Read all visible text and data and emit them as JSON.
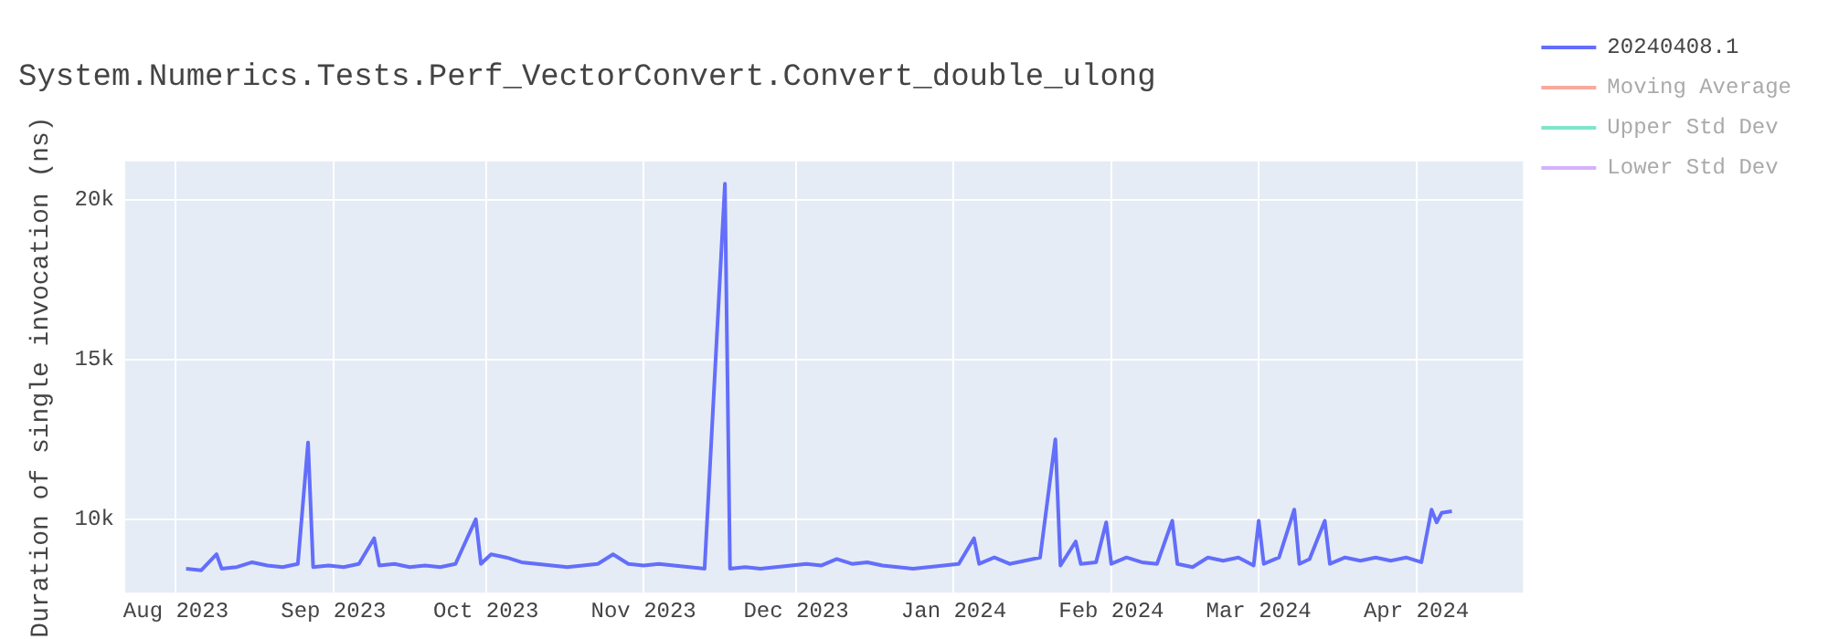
{
  "chart_data": {
    "type": "line",
    "title": "System.Numerics.Tests.Perf_VectorConvert.Convert_double_ulong",
    "ylabel": "Duration of single invocation (ns)",
    "x": [
      "2023-08-03",
      "2023-08-06",
      "2023-08-09",
      "2023-08-10",
      "2023-08-13",
      "2023-08-16",
      "2023-08-19",
      "2023-08-22",
      "2023-08-25",
      "2023-08-27",
      "2023-08-28",
      "2023-08-31",
      "2023-09-03",
      "2023-09-06",
      "2023-09-09",
      "2023-09-10",
      "2023-09-13",
      "2023-09-16",
      "2023-09-19",
      "2023-09-22",
      "2023-09-25",
      "2023-09-29",
      "2023-09-30",
      "2023-10-02",
      "2023-10-05",
      "2023-10-08",
      "2023-10-11",
      "2023-10-14",
      "2023-10-17",
      "2023-10-20",
      "2023-10-23",
      "2023-10-26",
      "2023-10-29",
      "2023-11-01",
      "2023-11-04",
      "2023-11-07",
      "2023-11-10",
      "2023-11-13",
      "2023-11-17",
      "2023-11-18",
      "2023-11-21",
      "2023-11-24",
      "2023-11-27",
      "2023-11-30",
      "2023-12-03",
      "2023-12-06",
      "2023-12-09",
      "2023-12-12",
      "2023-12-15",
      "2023-12-18",
      "2023-12-21",
      "2023-12-24",
      "2023-12-27",
      "2023-12-30",
      "2024-01-02",
      "2024-01-05",
      "2024-01-06",
      "2024-01-09",
      "2024-01-12",
      "2024-01-15",
      "2024-01-18",
      "2024-01-21",
      "2024-01-22",
      "2024-01-25",
      "2024-01-26",
      "2024-01-29",
      "2024-01-31",
      "2024-02-01",
      "2024-02-04",
      "2024-02-07",
      "2024-02-10",
      "2024-02-13",
      "2024-02-14",
      "2024-02-17",
      "2024-02-20",
      "2024-02-23",
      "2024-02-26",
      "2024-02-29",
      "2024-03-01",
      "2024-03-02",
      "2024-03-05",
      "2024-03-08",
      "2024-03-09",
      "2024-03-11",
      "2024-03-14",
      "2024-03-15",
      "2024-03-18",
      "2024-03-21",
      "2024-03-24",
      "2024-03-27",
      "2024-03-30",
      "2024-04-02",
      "2024-04-04",
      "2024-04-05",
      "2024-04-06",
      "2024-04-08"
    ],
    "series": [
      {
        "name": "20240408.1",
        "color": "#636efa",
        "values": [
          8450,
          8400,
          8900,
          8450,
          8500,
          8650,
          8550,
          8500,
          8600,
          12400,
          8500,
          8550,
          8500,
          8600,
          9400,
          8550,
          8600,
          8500,
          8550,
          8500,
          8600,
          10000,
          8600,
          8900,
          8800,
          8650,
          8600,
          8550,
          8500,
          8550,
          8600,
          8900,
          8600,
          8550,
          8600,
          8550,
          8500,
          8450,
          20500,
          8450,
          8500,
          8450,
          8500,
          8550,
          8600,
          8550,
          8750,
          8600,
          8650,
          8550,
          8500,
          8450,
          8500,
          8550,
          8600,
          9400,
          8600,
          8800,
          8600,
          8700,
          8800,
          12500,
          8550,
          9300,
          8600,
          8650,
          9900,
          8600,
          8800,
          8650,
          8600,
          9950,
          8600,
          8500,
          8800,
          8700,
          8800,
          8550,
          9950,
          8600,
          8800,
          10300,
          8600,
          8750,
          9950,
          8600,
          8800,
          8700,
          8800,
          8700,
          8800,
          8650,
          10300,
          9900,
          10200,
          10250
        ]
      },
      {
        "name": "Moving Average",
        "color": "#ef553b",
        "values": [
          null,
          null,
          null,
          null,
          null,
          null,
          null,
          null,
          null,
          null,
          null,
          null,
          null,
          null,
          null,
          null,
          null,
          null,
          null,
          null,
          null,
          null,
          null,
          null,
          null,
          null,
          null,
          null,
          null,
          null,
          null,
          null,
          null,
          null,
          null,
          null,
          null,
          null,
          null,
          null,
          null,
          null,
          null,
          null,
          null,
          null,
          null,
          null,
          null,
          null,
          null,
          null,
          null,
          null,
          null,
          null,
          null,
          null,
          null,
          null,
          null,
          null,
          null,
          null,
          null,
          null,
          null,
          null,
          null,
          null,
          null,
          null,
          null,
          null,
          null,
          null,
          null,
          null,
          null,
          null,
          null,
          null,
          null,
          null,
          null,
          null,
          null,
          null,
          null,
          null,
          null,
          null,
          null,
          null,
          null,
          null
        ]
      },
      {
        "name": "Upper Std Dev",
        "color": "#00cc96",
        "values": [
          null,
          null,
          null,
          null,
          null,
          null,
          null,
          null,
          null,
          null,
          null,
          null,
          null,
          null,
          null,
          null,
          null,
          null,
          null,
          null,
          null,
          null,
          null,
          null,
          null,
          null,
          null,
          null,
          null,
          null,
          null,
          null,
          null,
          null,
          null,
          null,
          null,
          null,
          null,
          null,
          null,
          null,
          null,
          null,
          null,
          null,
          null,
          null,
          null,
          null,
          null,
          null,
          null,
          null,
          null,
          null,
          null,
          null,
          null,
          null,
          null,
          null,
          null,
          null,
          null,
          null,
          null,
          null,
          null,
          null,
          null,
          null,
          null,
          null,
          null,
          null,
          null,
          null,
          null,
          null,
          null,
          null,
          null,
          null,
          null,
          null,
          null,
          null,
          null,
          null,
          null,
          null,
          null,
          null,
          null,
          null
        ]
      },
      {
        "name": "Lower Std Dev",
        "color": "#ab63fa",
        "values": [
          null,
          null,
          null,
          null,
          null,
          null,
          null,
          null,
          null,
          null,
          null,
          null,
          null,
          null,
          null,
          null,
          null,
          null,
          null,
          null,
          null,
          null,
          null,
          null,
          null,
          null,
          null,
          null,
          null,
          null,
          null,
          null,
          null,
          null,
          null,
          null,
          null,
          null,
          null,
          null,
          null,
          null,
          null,
          null,
          null,
          null,
          null,
          null,
          null,
          null,
          null,
          null,
          null,
          null,
          null,
          null,
          null,
          null,
          null,
          null,
          null,
          null,
          null,
          null,
          null,
          null,
          null,
          null,
          null,
          null,
          null,
          null,
          null,
          null,
          null,
          null,
          null,
          null,
          null,
          null,
          null,
          null,
          null,
          null,
          null,
          null,
          null,
          null,
          null,
          null,
          null,
          null,
          null,
          null,
          null,
          null
        ]
      }
    ],
    "xlim": [
      "2023-07-22",
      "2024-04-22"
    ],
    "xticks": [
      {
        "value": "2023-08-01",
        "label": "Aug 2023"
      },
      {
        "value": "2023-09-01",
        "label": "Sep 2023"
      },
      {
        "value": "2023-10-01",
        "label": "Oct 2023"
      },
      {
        "value": "2023-11-01",
        "label": "Nov 2023"
      },
      {
        "value": "2023-12-01",
        "label": "Dec 2023"
      },
      {
        "value": "2024-01-01",
        "label": "Jan 2024"
      },
      {
        "value": "2024-02-01",
        "label": "Feb 2024"
      },
      {
        "value": "2024-03-01",
        "label": "Mar 2024"
      },
      {
        "value": "2024-04-01",
        "label": "Apr 2024"
      }
    ],
    "ylim": [
      7700,
      21200
    ],
    "yticks": [
      {
        "value": 10000,
        "label": "10k"
      },
      {
        "value": 15000,
        "label": "15k"
      },
      {
        "value": 20000,
        "label": "20k"
      }
    ],
    "grid": true,
    "legend": "top right",
    "marker": "none",
    "line_style": "solid"
  }
}
